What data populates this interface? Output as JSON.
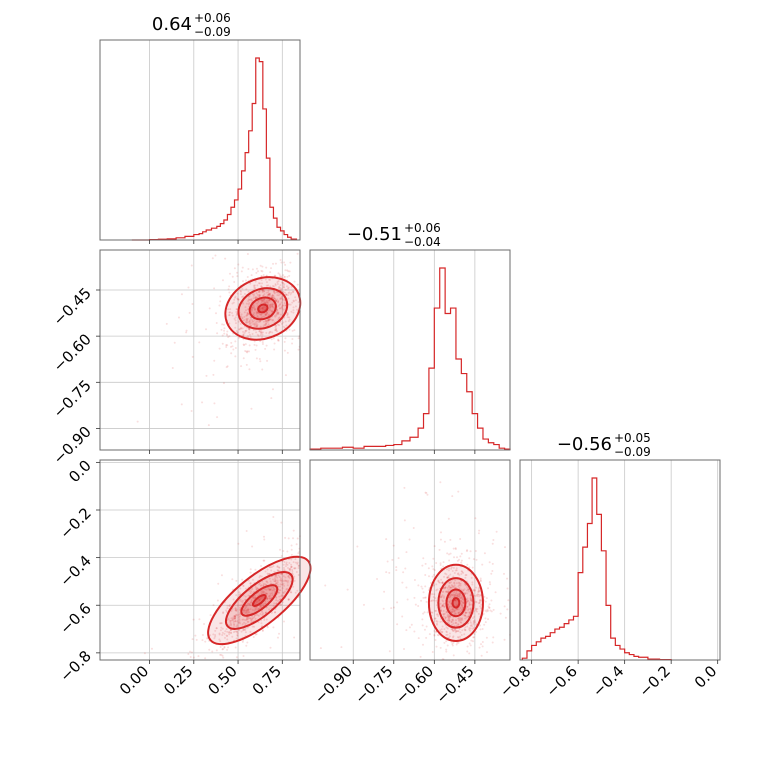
{
  "chart_data": {
    "type": "corner",
    "color": "#d62728",
    "grid": true,
    "panels": [
      {
        "id": "hist-0",
        "type": "histogram",
        "title": {
          "main": "0.64",
          "sup": "+0.06",
          "sub": "−0.09"
        },
        "xlim": [
          -0.28,
          0.85
        ],
        "xticks": [
          0.0,
          0.25,
          0.5,
          0.75
        ],
        "xtick_labels": [
          "0.00",
          "0.25",
          "0.50",
          "0.75"
        ],
        "bins": {
          "edges": [
            -0.1,
            -0.05,
            0.0,
            0.05,
            0.1,
            0.15,
            0.2,
            0.25,
            0.28,
            0.3,
            0.32,
            0.35,
            0.38,
            0.4,
            0.42,
            0.44,
            0.46,
            0.48,
            0.5,
            0.52,
            0.54,
            0.56,
            0.58,
            0.6,
            0.62,
            0.64,
            0.66,
            0.68,
            0.7,
            0.72,
            0.74,
            0.76,
            0.78,
            0.8,
            0.83
          ],
          "values": [
            0,
            0,
            0.002,
            0.004,
            0.006,
            0.012,
            0.02,
            0.03,
            0.035,
            0.045,
            0.055,
            0.065,
            0.075,
            0.09,
            0.11,
            0.14,
            0.18,
            0.22,
            0.28,
            0.38,
            0.48,
            0.6,
            0.75,
            1.0,
            0.98,
            0.72,
            0.45,
            0.18,
            0.12,
            0.07,
            0.05,
            0.03,
            0.015,
            0.005
          ]
        }
      },
      {
        "id": "hist-1",
        "type": "histogram",
        "title": {
          "main": "−0.51",
          "sup": "+0.06",
          "sub": "−0.04"
        },
        "xlim": [
          -1.06,
          -0.32
        ],
        "xticks": [
          -0.9,
          -0.75,
          -0.6,
          -0.45
        ],
        "xtick_labels": [
          "−0.90",
          "−0.75",
          "−0.60",
          "−0.45"
        ],
        "bins": {
          "edges": [
            -1.06,
            -1.02,
            -0.98,
            -0.94,
            -0.9,
            -0.86,
            -0.82,
            -0.78,
            -0.75,
            -0.72,
            -0.69,
            -0.66,
            -0.64,
            -0.62,
            -0.6,
            -0.58,
            -0.56,
            -0.54,
            -0.52,
            -0.5,
            -0.48,
            -0.46,
            -0.44,
            -0.42,
            -0.4,
            -0.38,
            -0.36,
            -0.34,
            -0.32
          ],
          "values": [
            0.005,
            0.01,
            0.01,
            0.015,
            0.01,
            0.02,
            0.02,
            0.025,
            0.03,
            0.05,
            0.07,
            0.12,
            0.2,
            0.45,
            0.78,
            1.0,
            0.75,
            0.78,
            0.5,
            0.42,
            0.32,
            0.2,
            0.12,
            0.06,
            0.04,
            0.03,
            0.01,
            0.005
          ]
        }
      },
      {
        "id": "hist-2",
        "type": "histogram",
        "title": {
          "main": "−0.56",
          "sup": "+0.05",
          "sub": "−0.09"
        },
        "xlim": [
          -0.85,
          0.01
        ],
        "xticks": [
          -0.8,
          -0.6,
          -0.4,
          -0.2,
          0.0
        ],
        "xtick_labels": [
          "−0.8",
          "−0.6",
          "−0.4",
          "−0.2",
          "0.0"
        ],
        "bins": {
          "edges": [
            -0.84,
            -0.82,
            -0.8,
            -0.78,
            -0.76,
            -0.74,
            -0.72,
            -0.7,
            -0.68,
            -0.66,
            -0.64,
            -0.62,
            -0.6,
            -0.58,
            -0.56,
            -0.54,
            -0.52,
            -0.5,
            -0.48,
            -0.46,
            -0.44,
            -0.42,
            -0.4,
            -0.38,
            -0.36,
            -0.34,
            -0.3,
            -0.25,
            -0.2
          ],
          "values": [
            0.01,
            0.05,
            0.08,
            0.1,
            0.12,
            0.13,
            0.15,
            0.17,
            0.18,
            0.2,
            0.22,
            0.24,
            0.48,
            0.62,
            0.75,
            1.0,
            0.8,
            0.6,
            0.3,
            0.12,
            0.08,
            0.06,
            0.04,
            0.03,
            0.02,
            0.015,
            0.005,
            0.002
          ]
        }
      },
      {
        "id": "scatter-1-0",
        "type": "scatter_contour",
        "xlim": [
          -0.28,
          0.85
        ],
        "ylim": [
          -0.97,
          -0.32
        ],
        "yticks": [
          -0.45,
          -0.6,
          -0.75,
          -0.9
        ],
        "ytick_labels": [
          "−0.45",
          "−0.60",
          "−0.75",
          "−0.90"
        ],
        "center": [
          0.64,
          -0.51
        ],
        "spread": [
          0.09,
          0.06
        ],
        "correlation": 0.35,
        "outlier_spread": [
          0.25,
          0.14
        ]
      },
      {
        "id": "scatter-2-0",
        "type": "scatter_contour",
        "xlim": [
          -0.28,
          0.85
        ],
        "ylim": [
          -0.83,
          0.01
        ],
        "xticks": [
          0.0,
          0.25,
          0.5,
          0.75
        ],
        "xtick_labels": [
          "0.00",
          "0.25",
          "0.50",
          "0.75"
        ],
        "yticks": [
          0.0,
          -0.2,
          -0.4,
          -0.6,
          -0.8
        ],
        "ytick_labels": [
          "0.0",
          "−0.2",
          "−0.4",
          "−0.6",
          "−0.8"
        ],
        "center": [
          0.62,
          -0.58
        ],
        "spread": [
          0.12,
          0.09
        ],
        "correlation": 0.8,
        "outlier_spread": [
          0.25,
          0.2
        ]
      },
      {
        "id": "scatter-2-1",
        "type": "scatter_contour",
        "xlim": [
          -1.06,
          -0.32
        ],
        "ylim": [
          -0.83,
          0.01
        ],
        "xticks": [
          -0.9,
          -0.75,
          -0.6,
          -0.45
        ],
        "xtick_labels": [
          "−0.90",
          "−0.75",
          "−0.60",
          "−0.45"
        ],
        "center": [
          -0.52,
          -0.59
        ],
        "spread": [
          0.05,
          0.08
        ],
        "correlation": 0.0,
        "outlier_spread": [
          0.16,
          0.2
        ]
      }
    ]
  }
}
